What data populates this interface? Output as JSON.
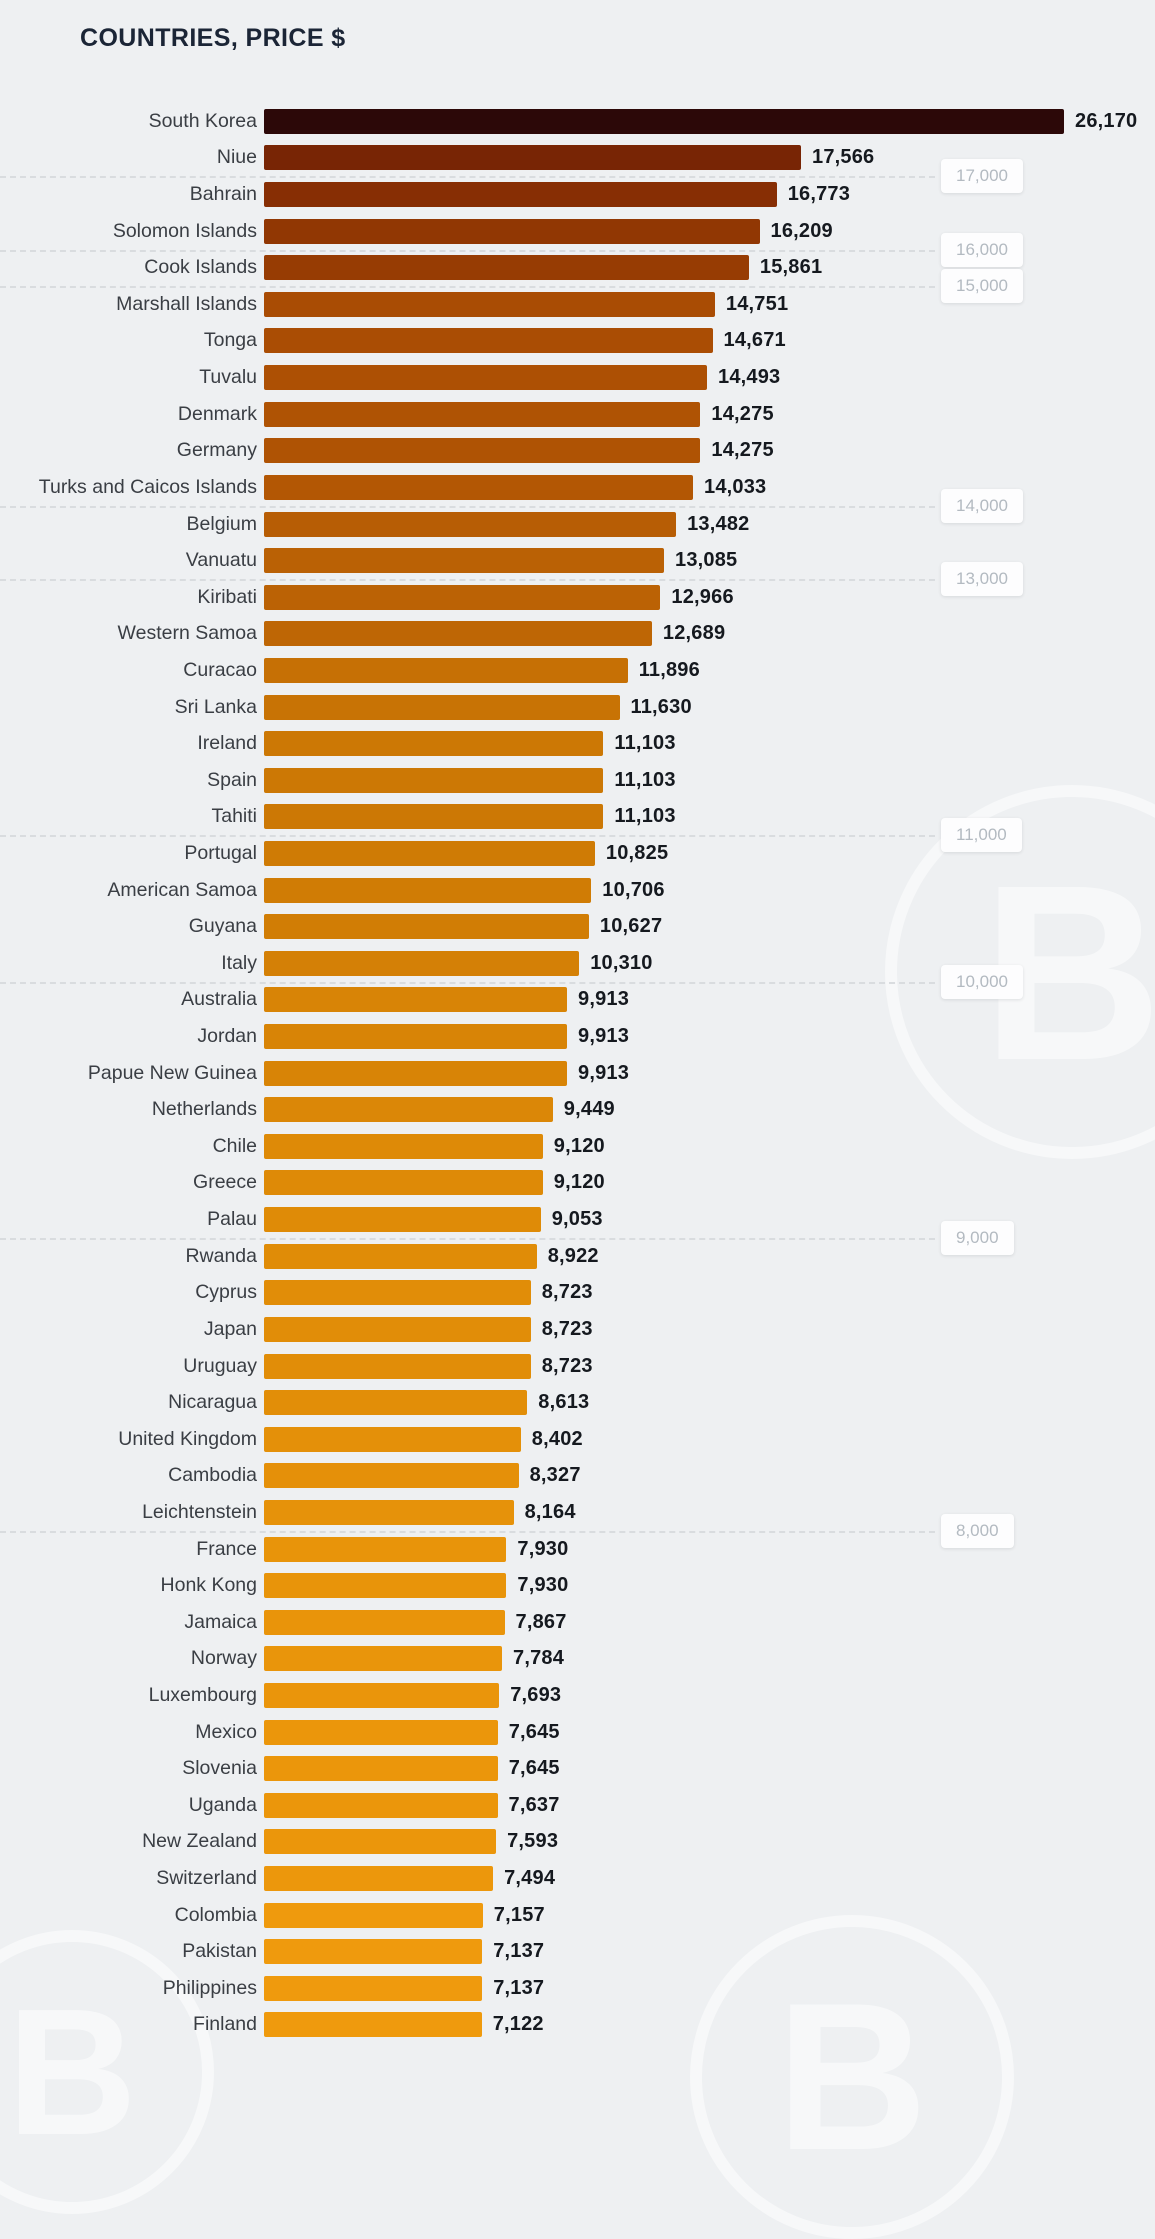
{
  "title": "COUNTRIES, PRICE $",
  "watermark_icon": "bitcoin",
  "chart_data": {
    "type": "bar",
    "orientation": "horizontal",
    "title": "COUNTRIES, PRICE $",
    "xlabel": "",
    "ylabel": "",
    "xlim": [
      0,
      26170
    ],
    "grid": "dashed-horizontal",
    "legend": "none",
    "categories": [
      "South Korea",
      "Niue",
      "Bahrain",
      "Solomon Islands",
      "Cook Islands",
      "Marshall Islands",
      "Tonga",
      "Tuvalu",
      "Denmark",
      "Germany",
      "Turks and Caicos Islands",
      "Belgium",
      "Vanuatu",
      "Kiribati",
      "Western Samoa",
      "Curacao",
      "Sri Lanka",
      "Ireland",
      "Spain",
      "Tahiti",
      "Portugal",
      "American Samoa",
      "Guyana",
      "Italy",
      "Australia",
      "Jordan",
      "Papue New Guinea",
      "Netherlands",
      "Chile",
      "Greece",
      "Palau",
      "Rwanda",
      "Cyprus",
      "Japan",
      "Uruguay",
      "Nicaragua",
      "United Kingdom",
      "Cambodia",
      "Leichtenstein",
      "France",
      "Honk Kong",
      "Jamaica",
      "Norway",
      "Luxembourg",
      "Mexico",
      "Slovenia",
      "Uganda",
      "New Zealand",
      "Switzerland",
      "Colombia",
      "Pakistan",
      "Philippines",
      "Finland"
    ],
    "values": [
      26170,
      17566,
      16773,
      16209,
      15861,
      14751,
      14671,
      14493,
      14275,
      14275,
      14033,
      13482,
      13085,
      12966,
      12689,
      11896,
      11630,
      11103,
      11103,
      11103,
      10825,
      10706,
      10627,
      10310,
      9913,
      9913,
      9913,
      9449,
      9120,
      9120,
      9053,
      8922,
      8723,
      8723,
      8723,
      8613,
      8402,
      8327,
      8164,
      7930,
      7930,
      7867,
      7784,
      7693,
      7645,
      7645,
      7637,
      7593,
      7494,
      7157,
      7137,
      7137,
      7122
    ],
    "gridlines": [
      {
        "label": "17,000",
        "value": 17000,
        "after_row": 1
      },
      {
        "label": "16,000",
        "value": 16000,
        "after_row": 3
      },
      {
        "label": "15,000",
        "value": 15000,
        "after_row": 4
      },
      {
        "label": "14,000",
        "value": 14000,
        "after_row": 10
      },
      {
        "label": "13,000",
        "value": 13000,
        "after_row": 12
      },
      {
        "label": "11,000",
        "value": 11000,
        "after_row": 19
      },
      {
        "label": "10,000",
        "value": 10000,
        "after_row": 23
      },
      {
        "label": "9,000",
        "value": 9000,
        "after_row": 30
      },
      {
        "label": "8,000",
        "value": 8000,
        "after_row": 38
      }
    ],
    "colors": {
      "background": "#eef0f2",
      "title_color": "#1b2536",
      "country_label_color": "#3a3e44",
      "value_label_color": "#15191f",
      "gridline_color": "#d9dcdf",
      "grid_label_color": "#b3bac1",
      "bar_ramp": [
        {
          "value": 7000,
          "color": "#f09b0d"
        },
        {
          "value": 9000,
          "color": "#df8b07"
        },
        {
          "value": 10000,
          "color": "#d78306"
        },
        {
          "value": 11000,
          "color": "#cd7905"
        },
        {
          "value": 12000,
          "color": "#c56f05"
        },
        {
          "value": 13000,
          "color": "#bb6205"
        },
        {
          "value": 14000,
          "color": "#b35704"
        },
        {
          "value": 15000,
          "color": "#a64804"
        },
        {
          "value": 16000,
          "color": "#953a03"
        },
        {
          "value": 17000,
          "color": "#832b04"
        },
        {
          "value": 18000,
          "color": "#6f2005"
        },
        {
          "value": 20000,
          "color": "#4f1409"
        },
        {
          "value": 26170,
          "color": "#2c0808"
        }
      ]
    }
  }
}
